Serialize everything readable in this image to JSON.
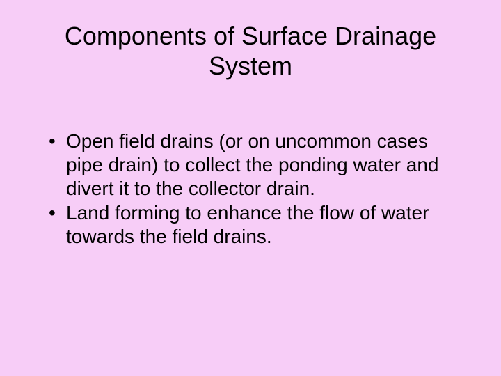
{
  "slide": {
    "background_color": "#f7cdf7",
    "title": {
      "text": "Components of Surface Drainage System",
      "fontsize": 36,
      "color": "#000000"
    },
    "bullets": {
      "fontsize": 28,
      "color": "#000000",
      "items": [
        "Open field drains (or on uncommon cases pipe drain) to collect the ponding water and divert it to the collector drain.",
        " Land forming to enhance the flow of water towards the field drains."
      ]
    }
  }
}
